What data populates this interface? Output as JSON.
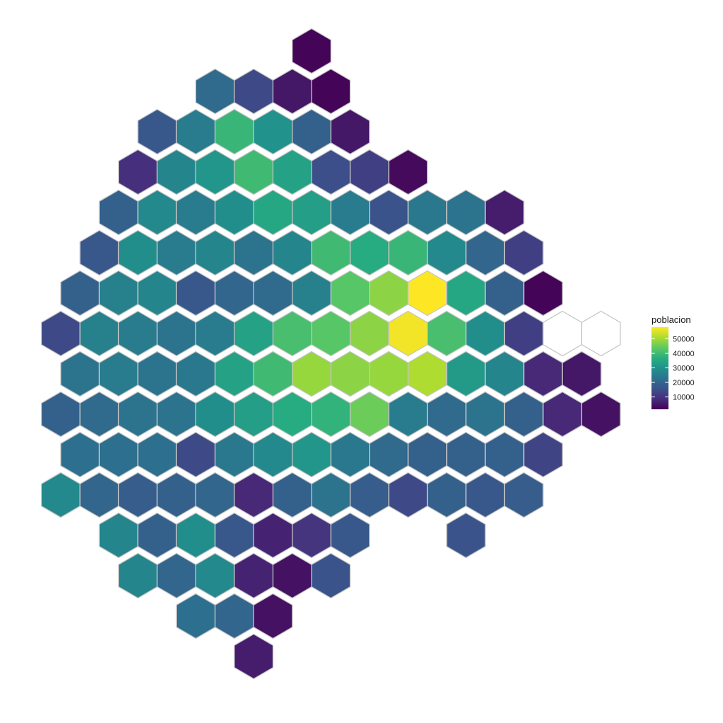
{
  "chart_data": {
    "type": "heatmap",
    "subtype": "hexbin-map",
    "title": "",
    "xlabel": "",
    "ylabel": "",
    "grid": false,
    "colormap": "viridis",
    "na_color": "#ffffff",
    "legend": {
      "title": "poblacion",
      "placement": "right",
      "range": [
        1500,
        58000
      ],
      "ticks": [
        10000,
        20000,
        30000,
        40000,
        50000
      ],
      "tick_labels": [
        "10000",
        "20000",
        "30000",
        "40000",
        "50000"
      ]
    },
    "rows": [
      {
        "offset": 1,
        "cells": [
          [
            6,
            2000
          ]
        ]
      },
      {
        "offset": 0,
        "cells": [
          [
            4,
            21000
          ],
          [
            5,
            14000
          ],
          [
            6,
            5000
          ],
          [
            7,
            2000
          ]
        ]
      },
      {
        "offset": 1,
        "cells": [
          [
            2,
            17000
          ],
          [
            3,
            25000
          ],
          [
            4,
            39000
          ],
          [
            5,
            30000
          ],
          [
            6,
            19000
          ],
          [
            7,
            5000
          ]
        ]
      },
      {
        "offset": 0,
        "cells": [
          [
            2,
            9000
          ],
          [
            3,
            27000
          ],
          [
            4,
            31000
          ],
          [
            5,
            40000
          ],
          [
            6,
            34000
          ],
          [
            7,
            15000
          ],
          [
            8,
            12000
          ],
          [
            9,
            3000
          ]
        ]
      },
      {
        "offset": 1,
        "cells": [
          [
            1,
            19000
          ],
          [
            2,
            28000
          ],
          [
            3,
            25000
          ],
          [
            4,
            29000
          ],
          [
            5,
            35000
          ],
          [
            6,
            33000
          ],
          [
            7,
            25000
          ],
          [
            8,
            16000
          ],
          [
            9,
            24000
          ],
          [
            10,
            23000
          ],
          [
            11,
            6000
          ]
        ]
      },
      {
        "offset": 0,
        "cells": [
          [
            1,
            17000
          ],
          [
            2,
            29000
          ],
          [
            3,
            25000
          ],
          [
            4,
            27000
          ],
          [
            5,
            23000
          ],
          [
            6,
            27000
          ],
          [
            7,
            40000
          ],
          [
            8,
            36000
          ],
          [
            9,
            39000
          ],
          [
            10,
            28000
          ],
          [
            11,
            20000
          ],
          [
            12,
            12000
          ]
        ]
      },
      {
        "offset": 1,
        "cells": [
          [
            0,
            19000
          ],
          [
            1,
            26000
          ],
          [
            2,
            27000
          ],
          [
            3,
            17000
          ],
          [
            4,
            20000
          ],
          [
            5,
            21000
          ],
          [
            6,
            26000
          ],
          [
            7,
            43000
          ],
          [
            8,
            48000
          ],
          [
            9,
            58000
          ],
          [
            10,
            35000
          ],
          [
            11,
            19000
          ],
          [
            12,
            2000
          ]
        ]
      },
      {
        "offset": 0,
        "cells": [
          [
            0,
            14000
          ],
          [
            1,
            26000
          ],
          [
            2,
            25000
          ],
          [
            3,
            23000
          ],
          [
            4,
            25000
          ],
          [
            5,
            34000
          ],
          [
            6,
            41000
          ],
          [
            7,
            43000
          ],
          [
            8,
            48000
          ],
          [
            9,
            57000
          ],
          [
            10,
            41000
          ],
          [
            11,
            29000
          ],
          [
            12,
            12000
          ],
          [
            13,
            null
          ],
          [
            14,
            null
          ]
        ]
      },
      {
        "offset": 1,
        "cells": [
          [
            0,
            23000
          ],
          [
            1,
            25000
          ],
          [
            2,
            23000
          ],
          [
            3,
            24000
          ],
          [
            4,
            34000
          ],
          [
            5,
            40000
          ],
          [
            6,
            49000
          ],
          [
            7,
            48000
          ],
          [
            8,
            49000
          ],
          [
            9,
            51000
          ],
          [
            10,
            32000
          ],
          [
            11,
            27000
          ],
          [
            12,
            8000
          ],
          [
            13,
            5000
          ]
        ]
      },
      {
        "offset": 0,
        "cells": [
          [
            0,
            19000
          ],
          [
            1,
            21000
          ],
          [
            2,
            23000
          ],
          [
            3,
            23000
          ],
          [
            4,
            29000
          ],
          [
            5,
            33000
          ],
          [
            6,
            36000
          ],
          [
            7,
            38000
          ],
          [
            8,
            45000
          ],
          [
            9,
            25000
          ],
          [
            10,
            21000
          ],
          [
            11,
            23000
          ],
          [
            12,
            19000
          ],
          [
            13,
            8000
          ],
          [
            14,
            4000
          ]
        ]
      },
      {
        "offset": 1,
        "cells": [
          [
            0,
            22000
          ],
          [
            1,
            22000
          ],
          [
            2,
            22000
          ],
          [
            3,
            14000
          ],
          [
            4,
            24000
          ],
          [
            5,
            28000
          ],
          [
            6,
            31000
          ],
          [
            7,
            24000
          ],
          [
            8,
            21000
          ],
          [
            9,
            19000
          ],
          [
            10,
            19000
          ],
          [
            11,
            19000
          ],
          [
            12,
            13000
          ]
        ]
      },
      {
        "offset": 0,
        "cells": [
          [
            0,
            28000
          ],
          [
            1,
            20000
          ],
          [
            2,
            18000
          ],
          [
            3,
            19000
          ],
          [
            4,
            20000
          ],
          [
            5,
            8000
          ],
          [
            6,
            19000
          ],
          [
            7,
            23000
          ],
          [
            8,
            18000
          ],
          [
            9,
            14000
          ],
          [
            10,
            19000
          ],
          [
            11,
            17000
          ],
          [
            12,
            18000
          ]
        ]
      },
      {
        "offset": 1,
        "cells": [
          [
            1,
            27000
          ],
          [
            2,
            19000
          ],
          [
            3,
            29000
          ],
          [
            4,
            17000
          ],
          [
            5,
            7000
          ],
          [
            6,
            10000
          ],
          [
            7,
            17000
          ],
          [
            10,
            16000
          ]
        ]
      },
      {
        "offset": 0,
        "cells": [
          [
            2,
            27000
          ],
          [
            3,
            20000
          ],
          [
            4,
            28000
          ],
          [
            5,
            7000
          ],
          [
            6,
            4000
          ],
          [
            7,
            16000
          ]
        ]
      },
      {
        "offset": 1,
        "cells": [
          [
            3,
            22000
          ],
          [
            4,
            20000
          ],
          [
            5,
            4000
          ]
        ]
      },
      {
        "offset": 0,
        "cells": [
          [
            5,
            6000
          ]
        ]
      }
    ]
  }
}
